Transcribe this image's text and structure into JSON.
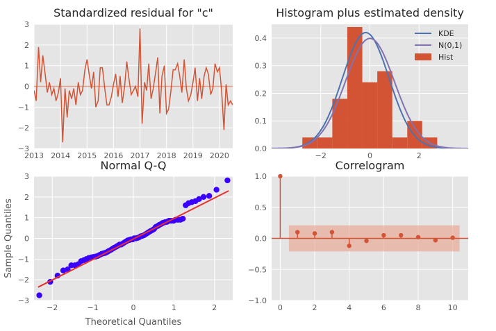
{
  "chart_data": [
    {
      "type": "line",
      "title": "Standardized residual for \"c\"",
      "xlim": [
        2013.0,
        2020.5
      ],
      "ylim": [
        -3,
        3
      ],
      "x_ticks": [
        2013,
        2014,
        2015,
        2016,
        2017,
        2018,
        2019,
        2020
      ],
      "y_ticks": [
        -3,
        -2,
        -1,
        0,
        1,
        2,
        3
      ],
      "grid": true,
      "colors": {
        "series": "#d35434",
        "reference": "#e8a08a"
      },
      "series": [
        {
          "x": [
            2013.0,
            2013.08,
            2013.17,
            2013.25,
            2013.33,
            2013.42,
            2013.5,
            2013.58,
            2013.67,
            2013.75,
            2013.83,
            2013.92,
            2014.0,
            2014.08,
            2014.17,
            2014.25,
            2014.33,
            2014.42,
            2014.5,
            2014.58,
            2014.67,
            2014.75,
            2014.83,
            2014.92,
            2015.0,
            2015.08,
            2015.17,
            2015.25,
            2015.33,
            2015.42,
            2015.5,
            2015.58,
            2015.67,
            2015.75,
            2015.83,
            2015.92,
            2016.0,
            2016.08,
            2016.17,
            2016.25,
            2016.33,
            2016.42,
            2016.5,
            2016.58,
            2016.67,
            2016.75,
            2016.83,
            2016.92,
            2017.0,
            2017.08,
            2017.17,
            2017.25,
            2017.33,
            2017.42,
            2017.5,
            2017.58,
            2017.67,
            2017.75,
            2017.83,
            2017.92,
            2018.0,
            2018.08,
            2018.17,
            2018.25,
            2018.33,
            2018.42,
            2018.5,
            2018.58,
            2018.67,
            2018.75,
            2018.83,
            2018.92,
            2019.0,
            2019.08,
            2019.17,
            2019.25,
            2019.33,
            2019.42,
            2019.5,
            2019.58,
            2019.67,
            2019.75,
            2019.83,
            2019.92,
            2020.0,
            2020.08,
            2020.17,
            2020.25,
            2020.33,
            2020.42,
            2020.5
          ],
          "y": [
            -0.2,
            -0.7,
            1.9,
            0.2,
            1.5,
            0.6,
            -0.3,
            0.2,
            -0.4,
            -0.1,
            -0.7,
            -0.3,
            0.4,
            -2.7,
            -0.1,
            -1.5,
            -0.2,
            -0.6,
            -0.1,
            -0.9,
            0.2,
            -0.4,
            -0.2,
            0.8,
            1.3,
            0.6,
            -0.1,
            0.7,
            -1.0,
            -0.7,
            0.9,
            0.9,
            -0.1,
            -0.9,
            -0.9,
            -0.5,
            0.1,
            0.6,
            -0.5,
            0.5,
            -0.8,
            0.0,
            1.2,
            0.4,
            -0.4,
            -0.2,
            0.0,
            -0.5,
            2.8,
            -1.8,
            0.2,
            -0.2,
            1.1,
            -0.6,
            -0.1,
            0.6,
            1.4,
            -1.3,
            0.5,
            1.0,
            -1.3,
            -1.1,
            -0.2,
            0.8,
            0.8,
            1.1,
            0.5,
            -0.3,
            1.3,
            -0.1,
            -0.7,
            -0.4,
            0.2,
            0.9,
            -0.7,
            0.4,
            -0.6,
            0.5,
            0.9,
            0.6,
            -0.4,
            -0.1,
            1.1,
            0.7,
            0.9,
            -0.2,
            -2.1,
            0.1,
            -0.9,
            -0.7,
            -0.9
          ]
        }
      ]
    },
    {
      "type": "bar",
      "title": "Histogram plus estimated density",
      "xlim": [
        -4,
        4
      ],
      "ylim": [
        0,
        0.45
      ],
      "x_ticks": [
        -2,
        0,
        2
      ],
      "y_ticks": [
        0.0,
        0.1,
        0.2,
        0.3,
        0.4
      ],
      "grid": true,
      "legend_position": "top-right",
      "bins": [
        {
          "from": -2.75,
          "to": -2.14,
          "value": 0.04
        },
        {
          "from": -2.14,
          "to": -1.53,
          "value": 0.04
        },
        {
          "from": -1.53,
          "to": -0.92,
          "value": 0.18
        },
        {
          "from": -0.92,
          "to": -0.31,
          "value": 0.44
        },
        {
          "from": -0.31,
          "to": 0.3,
          "value": 0.24
        },
        {
          "from": 0.3,
          "to": 0.91,
          "value": 0.28
        },
        {
          "from": 0.91,
          "to": 1.52,
          "value": 0.04
        },
        {
          "from": 1.52,
          "to": 2.13,
          "value": 0.1
        },
        {
          "from": 2.13,
          "to": 2.74,
          "value": 0.04
        }
      ],
      "series": [
        {
          "name": "KDE",
          "color": "#4c72b0",
          "mean": -0.17,
          "sd": 0.95
        },
        {
          "name": "N(0,1)",
          "color": "#8172b2",
          "mean": 0,
          "sd": 1
        },
        {
          "name": "Hist",
          "color": "#d35434"
        }
      ]
    },
    {
      "type": "scatter",
      "title": "Normal Q-Q",
      "xlabel": "Theoretical Quantiles",
      "ylabel": "Sample Quantiles",
      "xlim": [
        -2.45,
        2.45
      ],
      "ylim": [
        -3,
        3
      ],
      "x_ticks": [
        -2,
        -1,
        0,
        1,
        2
      ],
      "y_ticks": [
        -3,
        -2,
        -1,
        0,
        1,
        2,
        3
      ],
      "grid": true,
      "colors": {
        "points": "#3a00ff",
        "line": "#e5312c"
      },
      "reference_line": {
        "slope": 0.99,
        "intercept": -0.03
      },
      "points": {
        "x": [
          -2.32,
          -2.05,
          -1.87,
          -1.73,
          -1.62,
          -1.53,
          -1.44,
          -1.36,
          -1.29,
          -1.22,
          -1.16,
          -1.1,
          -1.04,
          -0.99,
          -0.93,
          -0.88,
          -0.83,
          -0.78,
          -0.73,
          -0.69,
          -0.64,
          -0.6,
          -0.55,
          -0.51,
          -0.47,
          -0.42,
          -0.38,
          -0.34,
          -0.3,
          -0.26,
          -0.22,
          -0.18,
          -0.14,
          -0.1,
          -0.06,
          -0.02,
          0.02,
          0.06,
          0.1,
          0.14,
          0.18,
          0.22,
          0.26,
          0.3,
          0.34,
          0.38,
          0.42,
          0.47,
          0.51,
          0.55,
          0.6,
          0.64,
          0.69,
          0.73,
          0.78,
          0.83,
          0.88,
          0.93,
          0.99,
          1.04,
          1.1,
          1.16,
          1.22,
          1.29,
          1.36,
          1.44,
          1.53,
          1.62,
          1.73,
          1.87,
          2.05,
          2.32
        ],
        "y": [
          -2.75,
          -2.1,
          -1.8,
          -1.55,
          -1.5,
          -1.3,
          -1.3,
          -1.25,
          -1.1,
          -1.05,
          -1.0,
          -0.95,
          -0.92,
          -0.9,
          -0.88,
          -0.85,
          -0.8,
          -0.75,
          -0.72,
          -0.7,
          -0.65,
          -0.6,
          -0.55,
          -0.5,
          -0.45,
          -0.4,
          -0.35,
          -0.3,
          -0.3,
          -0.25,
          -0.2,
          -0.15,
          -0.1,
          -0.08,
          -0.05,
          -0.05,
          0.0,
          0.0,
          0.02,
          0.05,
          0.1,
          0.12,
          0.15,
          0.2,
          0.25,
          0.3,
          0.35,
          0.4,
          0.45,
          0.55,
          0.6,
          0.65,
          0.7,
          0.75,
          0.78,
          0.8,
          0.85,
          0.85,
          0.85,
          0.9,
          0.9,
          0.9,
          0.95,
          1.6,
          1.7,
          1.75,
          1.8,
          1.9,
          2.0,
          2.05,
          2.35,
          2.8
        ]
      }
    },
    {
      "type": "bar",
      "title": "Correlogram",
      "xlim": [
        -0.5,
        10.9
      ],
      "ylim": [
        -1.0,
        1.0
      ],
      "x_ticks": [
        0,
        2,
        4,
        6,
        8,
        10
      ],
      "y_ticks": [
        -1.0,
        -0.5,
        0.0,
        0.5,
        1.0
      ],
      "grid": true,
      "colors": {
        "stems": "#d35434",
        "band": "#e8a08a"
      },
      "confidence_band": [
        -0.21,
        0.21
      ],
      "lags": [
        0,
        1,
        2,
        3,
        4,
        5,
        6,
        7,
        8,
        9,
        10
      ],
      "values": [
        1.0,
        0.1,
        0.08,
        0.1,
        -0.12,
        -0.04,
        0.05,
        0.05,
        0.02,
        -0.03,
        0.01
      ]
    }
  ]
}
